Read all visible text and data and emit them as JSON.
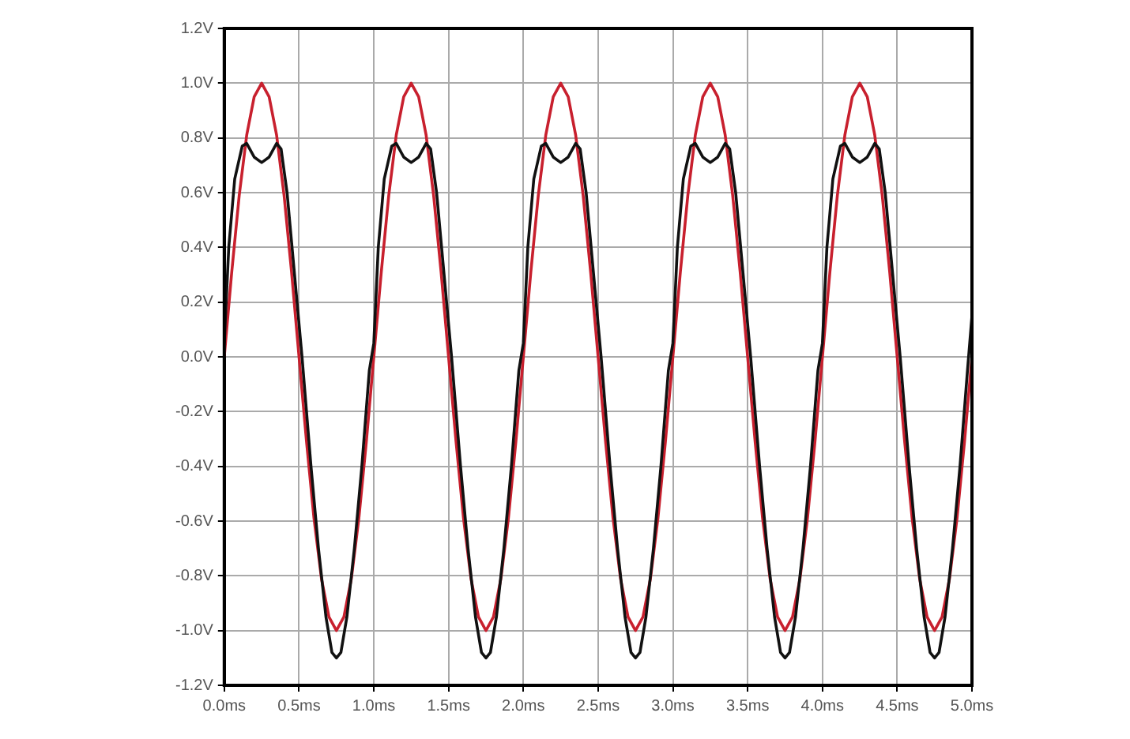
{
  "chart_data": {
    "type": "line",
    "xlim": [
      0,
      5
    ],
    "ylim": [
      -1.2,
      1.2
    ],
    "xticks": [
      {
        "value": 0,
        "label": "0.0ms"
      },
      {
        "value": 0.5,
        "label": "0.5ms"
      },
      {
        "value": 1,
        "label": "1.0ms"
      },
      {
        "value": 1.5,
        "label": "1.5ms"
      },
      {
        "value": 2,
        "label": "2.0ms"
      },
      {
        "value": 2.5,
        "label": "2.5ms"
      },
      {
        "value": 3,
        "label": "3.0ms"
      },
      {
        "value": 3.5,
        "label": "3.5ms"
      },
      {
        "value": 4,
        "label": "4.0ms"
      },
      {
        "value": 4.5,
        "label": "4.5ms"
      },
      {
        "value": 5,
        "label": "5.0ms"
      }
    ],
    "yticks": [
      {
        "value": -1.2,
        "label": "-1.2V"
      },
      {
        "value": -1,
        "label": "-1.0V"
      },
      {
        "value": -0.8,
        "label": "-0.8V"
      },
      {
        "value": -0.6,
        "label": "-0.6V"
      },
      {
        "value": -0.4,
        "label": "-0.4V"
      },
      {
        "value": -0.2,
        "label": "-0.2V"
      },
      {
        "value": 0,
        "label": "0.0V"
      },
      {
        "value": 0.2,
        "label": "0.2V"
      },
      {
        "value": 0.4,
        "label": "0.4V"
      },
      {
        "value": 0.6,
        "label": "0.6V"
      },
      {
        "value": 0.8,
        "label": "0.8V"
      },
      {
        "value": 1,
        "label": "1.0V"
      },
      {
        "value": 1.2,
        "label": "1.2V"
      }
    ],
    "grid": true,
    "legend": false,
    "marker": "none",
    "line_style": "solid",
    "series": [
      {
        "color": "#111111",
        "x": [
          0,
          0.03,
          0.07,
          0.12,
          0.15,
          0.2,
          0.25,
          0.3,
          0.35,
          0.38,
          0.42,
          0.47,
          0.52,
          0.58,
          0.63,
          0.68,
          0.72,
          0.75,
          0.78,
          0.82,
          0.87,
          0.92,
          0.97,
          1,
          1.03,
          1.07,
          1.12,
          1.15,
          1.2,
          1.25,
          1.3,
          1.35,
          1.38,
          1.42,
          1.47,
          1.52,
          1.58,
          1.63,
          1.68,
          1.72,
          1.75,
          1.78,
          1.82,
          1.87,
          1.92,
          1.97,
          2,
          2.03,
          2.07,
          2.12,
          2.15,
          2.2,
          2.25,
          2.3,
          2.35,
          2.38,
          2.42,
          2.47,
          2.52,
          2.58,
          2.63,
          2.68,
          2.72,
          2.75,
          2.78,
          2.82,
          2.87,
          2.92,
          2.97,
          3,
          3.03,
          3.07,
          3.12,
          3.15,
          3.2,
          3.25,
          3.3,
          3.35,
          3.38,
          3.42,
          3.47,
          3.52,
          3.58,
          3.63,
          3.68,
          3.72,
          3.75,
          3.78,
          3.82,
          3.87,
          3.92,
          3.97,
          4,
          4.03,
          4.07,
          4.12,
          4.15,
          4.2,
          4.25,
          4.3,
          4.35,
          4.38,
          4.42,
          4.47,
          4.52,
          4.58,
          4.63,
          4.68,
          4.72,
          4.75,
          4.78,
          4.82,
          4.87,
          4.92,
          4.97,
          5
        ],
        "values": [
          0.05,
          0.4,
          0.65,
          0.77,
          0.78,
          0.73,
          0.71,
          0.73,
          0.78,
          0.76,
          0.6,
          0.3,
          0,
          -0.4,
          -0.7,
          -0.95,
          -1.08,
          -1.1,
          -1.08,
          -0.95,
          -0.7,
          -0.4,
          -0.05,
          0.05,
          0.4,
          0.65,
          0.77,
          0.78,
          0.73,
          0.71,
          0.73,
          0.78,
          0.76,
          0.6,
          0.3,
          0,
          -0.4,
          -0.7,
          -0.95,
          -1.08,
          -1.1,
          -1.08,
          -0.95,
          -0.7,
          -0.4,
          -0.05,
          0.05,
          0.4,
          0.65,
          0.77,
          0.78,
          0.73,
          0.71,
          0.73,
          0.78,
          0.76,
          0.6,
          0.3,
          0,
          -0.4,
          -0.7,
          -0.95,
          -1.08,
          -1.1,
          -1.08,
          -0.95,
          -0.7,
          -0.4,
          -0.05,
          0.05,
          0.4,
          0.65,
          0.77,
          0.78,
          0.73,
          0.71,
          0.73,
          0.78,
          0.76,
          0.6,
          0.3,
          0,
          -0.4,
          -0.7,
          -0.95,
          -1.08,
          -1.1,
          -1.08,
          -0.95,
          -0.7,
          -0.4,
          -0.05,
          0.05,
          0.4,
          0.65,
          0.77,
          0.78,
          0.73,
          0.71,
          0.73,
          0.78,
          0.76,
          0.6,
          0.3,
          0,
          -0.4,
          -0.7,
          -0.95,
          -1.08,
          -1.1,
          -1.08,
          -0.95,
          -0.7,
          -0.4,
          -0.05,
          0.15
        ]
      },
      {
        "color": "#c8202e",
        "x": [
          0,
          0.05,
          0.1,
          0.15,
          0.2,
          0.25,
          0.3,
          0.35,
          0.4,
          0.45,
          0.5,
          0.55,
          0.6,
          0.65,
          0.7,
          0.75,
          0.8,
          0.85,
          0.9,
          0.95,
          1,
          1.05,
          1.1,
          1.15,
          1.2,
          1.25,
          1.3,
          1.35,
          1.4,
          1.45,
          1.5,
          1.55,
          1.6,
          1.65,
          1.7,
          1.75,
          1.8,
          1.85,
          1.9,
          1.95,
          2,
          2.05,
          2.1,
          2.15,
          2.2,
          2.25,
          2.3,
          2.35,
          2.4,
          2.45,
          2.5,
          2.55,
          2.6,
          2.65,
          2.7,
          2.75,
          2.8,
          2.85,
          2.9,
          2.95,
          3,
          3.05,
          3.1,
          3.15,
          3.2,
          3.25,
          3.3,
          3.35,
          3.4,
          3.45,
          3.5,
          3.55,
          3.6,
          3.65,
          3.7,
          3.75,
          3.8,
          3.85,
          3.9,
          3.95,
          4,
          4.05,
          4.1,
          4.15,
          4.2,
          4.25,
          4.3,
          4.35,
          4.4,
          4.45,
          4.5,
          4.55,
          4.6,
          4.65,
          4.7,
          4.75,
          4.8,
          4.85,
          4.9,
          4.95,
          5
        ],
        "values": [
          0,
          0.31,
          0.59,
          0.81,
          0.95,
          1,
          0.95,
          0.81,
          0.59,
          0.31,
          0,
          -0.31,
          -0.59,
          -0.81,
          -0.95,
          -1,
          -0.95,
          -0.81,
          -0.59,
          -0.31,
          0,
          0.31,
          0.59,
          0.81,
          0.95,
          1,
          0.95,
          0.81,
          0.59,
          0.31,
          0,
          -0.31,
          -0.59,
          -0.81,
          -0.95,
          -1,
          -0.95,
          -0.81,
          -0.59,
          -0.31,
          0,
          0.31,
          0.59,
          0.81,
          0.95,
          1,
          0.95,
          0.81,
          0.59,
          0.31,
          0,
          -0.31,
          -0.59,
          -0.81,
          -0.95,
          -1,
          -0.95,
          -0.81,
          -0.59,
          -0.31,
          0,
          0.31,
          0.59,
          0.81,
          0.95,
          1,
          0.95,
          0.81,
          0.59,
          0.31,
          0,
          -0.31,
          -0.59,
          -0.81,
          -0.95,
          -1,
          -0.95,
          -0.81,
          -0.59,
          -0.31,
          0,
          0.31,
          0.59,
          0.81,
          0.95,
          1,
          0.95,
          0.81,
          0.59,
          0.31,
          0,
          -0.31,
          -0.59,
          -0.81,
          -0.95,
          -1,
          -0.95,
          -0.81,
          -0.59,
          -0.31,
          0
        ]
      }
    ]
  }
}
